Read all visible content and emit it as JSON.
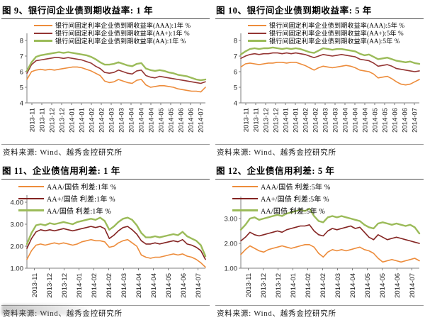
{
  "page": {
    "background": "#ffffff",
    "axis_color": "#7f7f7f"
  },
  "chart_data": [
    {
      "type": "line",
      "title": "图 9、银行间企业债到期收益率: 1 年",
      "source": "资料来源: Wind、越秀金控研究所",
      "legend_position": "top-left",
      "grid": false,
      "ylim": [
        4,
        8
      ],
      "yticks": [
        {
          "v": 8,
          "label": "8"
        },
        {
          "v": 7,
          "label": "7"
        },
        {
          "v": 6,
          "label": "6"
        },
        {
          "v": 5,
          "label": "5"
        },
        {
          "v": 4,
          "label": "4"
        }
      ],
      "xlabels": [
        "2013-11",
        "2013-11",
        "2013-12",
        "2013-12",
        "2014-01",
        "2014-01",
        "2014-02",
        "2014-02",
        "2014-03",
        "2014-03",
        "2014-04",
        "2014-04",
        "2014-04",
        "2014-05",
        "2014-05",
        "2014-06",
        "2014-06",
        "2014-07"
      ],
      "series": [
        {
          "name": "银行间固定利率企业债到期收益率(AAA):1年 %",
          "color": "#ED8C3B",
          "width": 1.6,
          "values": [
            5.5,
            6.0,
            6.1,
            6.15,
            6.1,
            6.15,
            6.1,
            6.15,
            6.2,
            6.25,
            6.3,
            6.3,
            6.25,
            6.15,
            6.05,
            5.9,
            5.75,
            5.4,
            5.3,
            5.35,
            5.5,
            5.4,
            5.3,
            5.25,
            5.45,
            5.5,
            5.15,
            5.0,
            5.05,
            5.1,
            5.1,
            5.05,
            5.0,
            4.9,
            4.85,
            4.8,
            4.75,
            4.75,
            4.7,
            5.0
          ]
        },
        {
          "name": "银行间固定利率企业债到期收益率(AA+):1年 %",
          "color": "#943634",
          "width": 1.6,
          "values": [
            5.9,
            6.45,
            6.7,
            6.75,
            6.8,
            6.85,
            6.9,
            6.9,
            6.85,
            6.9,
            6.85,
            6.8,
            6.75,
            6.65,
            6.55,
            6.35,
            6.2,
            5.95,
            5.9,
            5.95,
            6.1,
            6.0,
            5.9,
            5.85,
            6.05,
            6.1,
            5.75,
            5.65,
            5.6,
            5.7,
            5.65,
            5.6,
            5.55,
            5.5,
            5.45,
            5.4,
            5.35,
            5.3,
            5.25,
            5.35
          ]
        },
        {
          "name": "银行间固定利率企业债到期收益率(AA):1年 %",
          "color": "#9BBB59",
          "width": 2.4,
          "values": [
            6.05,
            6.6,
            6.95,
            7.05,
            7.1,
            7.15,
            7.2,
            7.25,
            7.2,
            7.25,
            7.2,
            7.15,
            7.1,
            7.05,
            6.95,
            6.8,
            6.6,
            6.45,
            6.45,
            6.5,
            6.6,
            6.5,
            6.4,
            6.35,
            6.5,
            6.55,
            6.2,
            6.1,
            6.05,
            6.1,
            6.05,
            5.95,
            5.9,
            5.8,
            5.75,
            5.7,
            5.6,
            5.5,
            5.45,
            5.5
          ]
        }
      ]
    },
    {
      "type": "line",
      "title": "图 10、银行间企业债到期收益率: 5 年",
      "source": "资料来源: Wind、越秀金控研究所",
      "legend_position": "top-left",
      "grid": false,
      "ylim": [
        4,
        8
      ],
      "yticks": [
        {
          "v": 8,
          "label": "8"
        },
        {
          "v": 7,
          "label": "7"
        },
        {
          "v": 6,
          "label": "6"
        },
        {
          "v": 5,
          "label": "5"
        },
        {
          "v": 4,
          "label": "4"
        }
      ],
      "xlabels": [
        "2013-11",
        "2013-11",
        "2013-12",
        "2013-12",
        "2014-01",
        "2014-01",
        "2014-02",
        "2014-02",
        "2014-03",
        "2014-03",
        "2014-04",
        "2014-04",
        "2014-04",
        "2014-05",
        "2014-05",
        "2014-06",
        "2014-06",
        "2014-07"
      ],
      "series": [
        {
          "name": "银行间固定利率企业债到期收益率(AAA):5年 %",
          "color": "#ED8C3B",
          "width": 1.6,
          "values": [
            6.3,
            6.5,
            6.55,
            6.5,
            6.45,
            6.5,
            6.55,
            6.55,
            6.6,
            6.6,
            6.55,
            6.6,
            6.6,
            6.5,
            6.4,
            6.25,
            6.1,
            6.25,
            6.35,
            6.3,
            6.25,
            6.3,
            6.35,
            6.4,
            6.35,
            6.25,
            6.1,
            6.05,
            6.0,
            5.85,
            5.6,
            5.65,
            5.7,
            5.55,
            5.35,
            5.2,
            5.15,
            5.2,
            5.35,
            5.5
          ]
        },
        {
          "name": "银行间固定利率企业债到期收益率(AA+):5年 %",
          "color": "#943634",
          "width": 1.6,
          "values": [
            6.85,
            7.0,
            7.1,
            7.15,
            7.1,
            7.15,
            7.15,
            7.2,
            7.2,
            7.15,
            7.2,
            7.15,
            7.2,
            7.15,
            7.1,
            7.0,
            6.9,
            7.0,
            7.1,
            7.05,
            7.0,
            7.05,
            7.1,
            7.05,
            7.0,
            6.95,
            6.8,
            6.75,
            6.7,
            6.55,
            6.35,
            6.4,
            6.45,
            6.35,
            6.2,
            6.15,
            6.1,
            6.05,
            6.0,
            6.05
          ]
        },
        {
          "name": "银行间固定利率企业债到期收益率(AA):5年 %",
          "color": "#9BBB59",
          "width": 2.4,
          "values": [
            7.1,
            7.3,
            7.45,
            7.5,
            7.45,
            7.5,
            7.5,
            7.55,
            7.5,
            7.45,
            7.5,
            7.45,
            7.5,
            7.45,
            7.35,
            7.25,
            7.2,
            7.35,
            7.5,
            7.45,
            7.4,
            7.45,
            7.45,
            7.4,
            7.35,
            7.3,
            7.15,
            7.05,
            7.1,
            6.95,
            6.8,
            6.85,
            6.9,
            6.8,
            6.7,
            6.65,
            6.6,
            6.65,
            6.55,
            6.5
          ]
        }
      ]
    },
    {
      "type": "line",
      "title": "图 11、企业债信用利差: 1 年",
      "source": "资料来源: Wind、越秀金控研究所",
      "legend_position": "top-left",
      "grid": false,
      "ylim": [
        1,
        4
      ],
      "yticks": [
        {
          "v": 4,
          "label": "4.00"
        },
        {
          "v": 3,
          "label": "3.00"
        },
        {
          "v": 2,
          "label": "2.00"
        },
        {
          "v": 1,
          "label": "1.00"
        }
      ],
      "xlabels": [
        "2013-11",
        "2013-12",
        "2013-12",
        "2014-01",
        "2014-02",
        "2014-02",
        "2014-03",
        "2014-04",
        "2014-04",
        "2014-05",
        "2014-06",
        "2014-07"
      ],
      "series": [
        {
          "name": "AAA/国债 利差:1年 %",
          "color": "#ED8C3B",
          "width": 1.6,
          "values": [
            1.4,
            1.8,
            2.05,
            2.1,
            2.05,
            2.1,
            2.15,
            2.1,
            2.15,
            2.1,
            2.05,
            2.1,
            2.2,
            2.25,
            2.3,
            2.25,
            2.25,
            2.2,
            1.95,
            2.0,
            2.15,
            2.25,
            2.3,
            2.15,
            2.0,
            1.6,
            1.5,
            1.45,
            1.5,
            1.5,
            1.55,
            1.6,
            1.65,
            1.6,
            1.65,
            1.55,
            1.5,
            1.4,
            1.25,
            1.05
          ]
        },
        {
          "name": "AA+/国债 利差:1年 %",
          "color": "#842422",
          "width": 1.6,
          "values": [
            1.9,
            2.35,
            2.65,
            2.75,
            2.7,
            2.75,
            2.7,
            2.75,
            2.8,
            2.75,
            2.7,
            2.75,
            2.8,
            2.85,
            2.9,
            2.85,
            2.9,
            2.8,
            2.35,
            2.5,
            2.7,
            2.85,
            2.9,
            2.75,
            2.55,
            2.25,
            2.1,
            2.1,
            2.15,
            2.1,
            2.15,
            2.2,
            2.25,
            2.2,
            2.3,
            2.1,
            2.05,
            1.95,
            1.8,
            1.4
          ]
        },
        {
          "name": "AA/国债 利差:1年 %",
          "color": "#9BBB59",
          "width": 2.4,
          "values": [
            2.1,
            2.6,
            2.95,
            3.0,
            2.95,
            3.05,
            3.0,
            3.05,
            3.1,
            3.05,
            3.0,
            3.1,
            3.15,
            3.2,
            3.25,
            3.2,
            3.3,
            3.15,
            2.75,
            2.9,
            3.1,
            3.25,
            3.3,
            3.2,
            2.95,
            2.6,
            2.4,
            2.4,
            2.45,
            2.4,
            2.45,
            2.5,
            2.55,
            2.5,
            2.65,
            2.45,
            2.35,
            2.25,
            2.05,
            1.55
          ]
        }
      ]
    },
    {
      "type": "line",
      "title": "图 12、企业债信用利差: 5 年",
      "source": "资料来源: Wind、越秀金控研究所",
      "legend_position": "top-left",
      "grid": false,
      "ylim": [
        1,
        3.6
      ],
      "yticks": [
        {
          "v": 3,
          "label": "3.00"
        },
        {
          "v": 2,
          "label": "2.00"
        },
        {
          "v": 1,
          "label": "1.00"
        }
      ],
      "xlabels": [
        "2013-11",
        "2013-12",
        "2013-12",
        "2014-01",
        "2014-02",
        "2014-02",
        "2014-03",
        "2014-04",
        "2014-05",
        "2014-05",
        "2014-06",
        "2014-07"
      ],
      "series": [
        {
          "name": "AAA/国债 利差:5年 %",
          "color": "#ED8C3B",
          "width": 1.6,
          "values": [
            1.55,
            1.75,
            1.9,
            1.8,
            1.7,
            1.65,
            1.75,
            1.8,
            1.85,
            1.9,
            1.85,
            1.8,
            1.85,
            1.9,
            1.95,
            1.95,
            1.85,
            1.6,
            1.45,
            1.65,
            1.75,
            1.7,
            1.75,
            1.7,
            1.75,
            1.8,
            1.85,
            1.75,
            1.7,
            1.6,
            1.4,
            1.25,
            1.3,
            1.35,
            1.3,
            1.25,
            1.3,
            1.35,
            1.4,
            1.3
          ]
        },
        {
          "name": "AA+/国债 利差:5年 %",
          "color": "#842422",
          "width": 1.6,
          "values": [
            2.1,
            2.25,
            2.45,
            2.35,
            2.3,
            2.35,
            2.4,
            2.45,
            2.5,
            2.45,
            2.55,
            2.6,
            2.65,
            2.7,
            2.7,
            2.75,
            2.5,
            2.35,
            2.3,
            2.5,
            2.6,
            2.55,
            2.6,
            2.65,
            2.7,
            2.6,
            2.65,
            2.45,
            2.25,
            2.15,
            2.35,
            2.25,
            2.15,
            2.2,
            2.25,
            2.2,
            2.15,
            2.1,
            2.05,
            2.0
          ]
        },
        {
          "name": "AA/国债 利差:5年 %",
          "color": "#9BBB59",
          "width": 2.4,
          "values": [
            2.55,
            2.75,
            3.0,
            3.05,
            2.95,
            3.0,
            3.05,
            3.1,
            3.15,
            3.1,
            3.2,
            3.25,
            3.3,
            3.35,
            3.3,
            3.4,
            3.1,
            2.9,
            2.85,
            3.05,
            3.1,
            3.05,
            3.1,
            3.05,
            3.0,
            2.95,
            2.9,
            2.75,
            2.65,
            2.6,
            2.8,
            2.85,
            2.8,
            2.75,
            2.8,
            2.75,
            2.7,
            2.75,
            2.65,
            2.4
          ]
        }
      ]
    }
  ]
}
